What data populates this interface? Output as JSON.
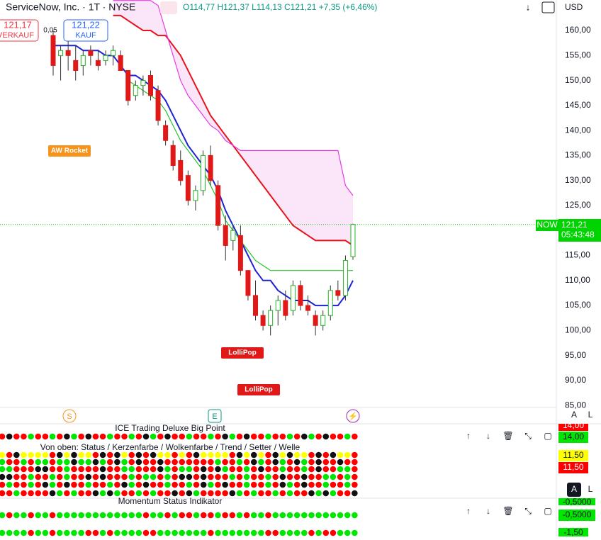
{
  "header": {
    "symbol": "ServiceNow, Inc. · 1T · NYSE",
    "ohlc": "O114,77 H121,37 L114,13 C121,21 +7,35 (+6,46%)",
    "currency": "USD"
  },
  "trade": {
    "sell_price": "121,17",
    "sell": "VERKAUF",
    "spread": "0,05",
    "buy_price": "121,22",
    "buy": "KAUF"
  },
  "price_tag": {
    "symbol": "NOW",
    "price": "121,21",
    "countdown": "05:43:48"
  },
  "chart_data": {
    "type": "candlestick",
    "open": [
      159,
      155,
      156,
      154,
      153,
      156,
      154,
      154,
      155,
      155,
      152,
      147,
      149,
      151,
      148,
      141,
      137,
      134,
      131,
      126,
      128,
      135,
      129,
      121,
      118,
      119,
      112,
      107,
      103,
      101,
      104,
      106,
      104,
      109,
      105,
      103,
      101,
      103,
      108,
      107,
      114.77
    ],
    "high": [
      160,
      157,
      158,
      157,
      156,
      157,
      156,
      156,
      157,
      156,
      152,
      150,
      151,
      152,
      149,
      142,
      138,
      136,
      132,
      129,
      136,
      137,
      130,
      123,
      121,
      121,
      112,
      110,
      104,
      105,
      107,
      108,
      110,
      110,
      107,
      104,
      104,
      109,
      110,
      115,
      121.37
    ],
    "low": [
      151,
      150,
      152,
      150,
      151,
      153,
      152,
      153,
      153,
      152,
      145,
      146,
      147,
      146,
      141,
      137,
      132,
      129,
      125,
      124,
      127,
      129,
      120,
      114,
      116,
      111,
      106,
      102,
      100,
      99,
      101,
      102,
      103,
      104,
      103,
      99,
      100,
      102,
      106,
      106,
      114.13
    ],
    "close": [
      153,
      156,
      155,
      152,
      155,
      155,
      153,
      155,
      156,
      152,
      146,
      149,
      150,
      147,
      142,
      138,
      133,
      130,
      126,
      128,
      135,
      130,
      121,
      117,
      120,
      112,
      107,
      103,
      101,
      104,
      106,
      103,
      109,
      105,
      104,
      101,
      103,
      108,
      107,
      114,
      121.21
    ],
    "series": [
      {
        "name": "Trend",
        "color": "#1e22d6",
        "values": [
          157,
          157,
          157,
          157,
          156,
          156,
          156,
          155,
          155,
          153,
          151,
          151,
          150,
          149,
          148,
          146,
          143,
          140,
          137,
          135,
          133,
          131,
          128,
          124,
          121,
          118,
          115,
          112,
          110,
          110,
          108,
          107,
          106,
          106,
          106,
          105,
          105,
          105,
          105,
          107,
          110
        ]
      },
      {
        "name": "Setter",
        "color": "#e8121b",
        "values": [
          null,
          null,
          null,
          null,
          null,
          null,
          null,
          null,
          163,
          163,
          162,
          161,
          160,
          160,
          159,
          159,
          157,
          155,
          152,
          149,
          146,
          143,
          141,
          139,
          137,
          135,
          133,
          131,
          129,
          127,
          125,
          123,
          121,
          120,
          119,
          118,
          118,
          118,
          118,
          118,
          117
        ]
      },
      {
        "name": "Wolke",
        "color": "#e23ce0",
        "values": [
          null,
          null,
          null,
          null,
          null,
          null,
          null,
          null,
          166,
          166,
          166,
          166,
          166,
          166,
          165,
          160,
          155,
          150,
          147,
          145,
          143,
          141,
          140,
          138,
          137,
          136,
          136,
          136,
          136,
          136,
          136,
          136,
          136,
          136,
          136,
          136,
          136,
          136,
          136,
          129,
          127
        ]
      },
      {
        "name": "Welle",
        "color": "#22c42a",
        "values": [
          null,
          null,
          null,
          null,
          null,
          null,
          null,
          null,
          null,
          null,
          150,
          149,
          148,
          147,
          146,
          144,
          141,
          138,
          136,
          134,
          132,
          129,
          126,
          122,
          120,
          118,
          116,
          114,
          113,
          112,
          112,
          112,
          112,
          112,
          112,
          112,
          112,
          112,
          112,
          112,
          112
        ]
      }
    ],
    "ylim": [
      84.6,
      166.1
    ],
    "yticks": [
      {
        "value": 85,
        "label": "85,00"
      },
      {
        "value": 90,
        "label": "90,00"
      },
      {
        "value": 95,
        "label": "95,00"
      },
      {
        "value": 100,
        "label": "100,00"
      },
      {
        "value": 105,
        "label": "105,00"
      },
      {
        "value": 110,
        "label": "110,00"
      },
      {
        "value": 115,
        "label": "115,00"
      },
      {
        "value": 120,
        "label": "120,00"
      },
      {
        "value": 125,
        "label": "125,00"
      },
      {
        "value": 130,
        "label": "130,00"
      },
      {
        "value": 135,
        "label": "135,00"
      },
      {
        "value": 140,
        "label": "140,00"
      },
      {
        "value": 145,
        "label": "145,00"
      },
      {
        "value": 150,
        "label": "150,00"
      },
      {
        "value": 155,
        "label": "155,00"
      },
      {
        "value": 160,
        "label": "160,00"
      }
    ],
    "annotations": [
      "AW Rocket",
      "LolliPop",
      "LolliPop"
    ]
  },
  "events": [
    "S",
    "E"
  ],
  "scale_buttons": [
    "A",
    "L",
    "A",
    "L"
  ],
  "panels": [
    {
      "title": "ICE Trading Deluxe Big Point",
      "subtitle": "Von oben: Status / Kerzenfarbe / Wolkenfarbe / Trend / Setter / Welle",
      "scale": [
        "14,00",
        "14,00",
        "11,50",
        "11,50"
      ]
    },
    {
      "title": "Momentum Status Indikator",
      "scale": [
        "-0,5000",
        "-0,5000",
        "-1,50"
      ]
    }
  ]
}
